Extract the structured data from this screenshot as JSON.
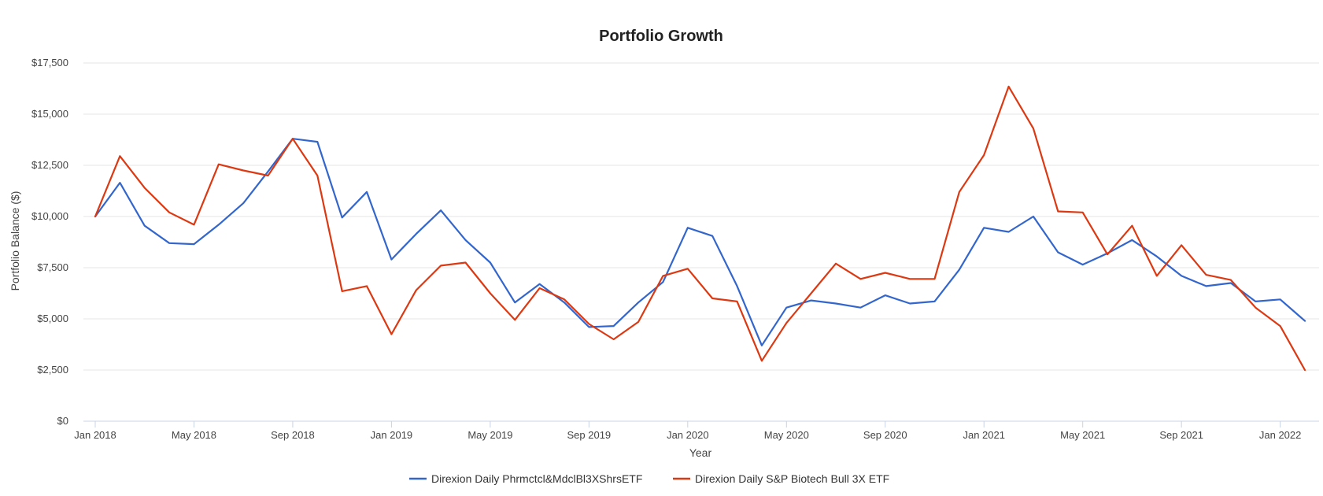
{
  "chart_data": {
    "type": "line",
    "title": "Portfolio Growth",
    "xlabel": "Year",
    "ylabel": "Portfolio Balance ($)",
    "ylim": [
      0,
      17500
    ],
    "yticks": [
      0,
      2500,
      5000,
      7500,
      10000,
      12500,
      15000,
      17500
    ],
    "ytick_labels": [
      "$0",
      "$2,500",
      "$5,000",
      "$7,500",
      "$10,000",
      "$12,500",
      "$15,000",
      "$17,500"
    ],
    "xtick_indices": [
      0,
      4,
      8,
      12,
      16,
      20,
      24,
      28,
      32,
      36,
      40,
      44,
      48
    ],
    "xtick_labels": [
      "Jan 2018",
      "May 2018",
      "Sep 2018",
      "Jan 2019",
      "May 2019",
      "Sep 2019",
      "Jan 2020",
      "May 2020",
      "Sep 2020",
      "Jan 2021",
      "May 2021",
      "Sep 2021",
      "Jan 2022"
    ],
    "x_count": 50,
    "legend_position": "bottom-center",
    "grid": true,
    "series": [
      {
        "name": "Direxion Daily Phrmctcl&MdclBl3XShrsETF",
        "color": "#3366cc",
        "values": [
          10000,
          11650,
          9550,
          8700,
          8650,
          9600,
          10650,
          12200,
          13800,
          13650,
          9950,
          11200,
          7900,
          9150,
          10300,
          8850,
          7750,
          5800,
          6700,
          5800,
          4600,
          4650,
          5800,
          6800,
          9450,
          9050,
          6600,
          3700,
          5550,
          5900,
          5750,
          5550,
          6150,
          5750,
          5850,
          7400,
          9450,
          9250,
          10000,
          8250,
          7650,
          8200,
          8850,
          8050,
          7100,
          6600,
          6750,
          5850,
          5950,
          4900
        ]
      },
      {
        "name": "Direxion Daily S&P Biotech Bull 3X ETF",
        "color": "#dc3912",
        "values": [
          10000,
          12950,
          11400,
          10200,
          9600,
          12550,
          12250,
          12000,
          13800,
          12000,
          6350,
          6600,
          4250,
          6400,
          7600,
          7750,
          6250,
          4950,
          6500,
          5950,
          4750,
          4000,
          4850,
          7100,
          7450,
          6000,
          5850,
          2950,
          4800,
          6250,
          7700,
          6950,
          7250,
          6950,
          6950,
          11200,
          13000,
          16350,
          14300,
          10250,
          10200,
          8150,
          9550,
          7100,
          8600,
          7150,
          6900,
          5550,
          4650,
          2500
        ]
      }
    ]
  }
}
